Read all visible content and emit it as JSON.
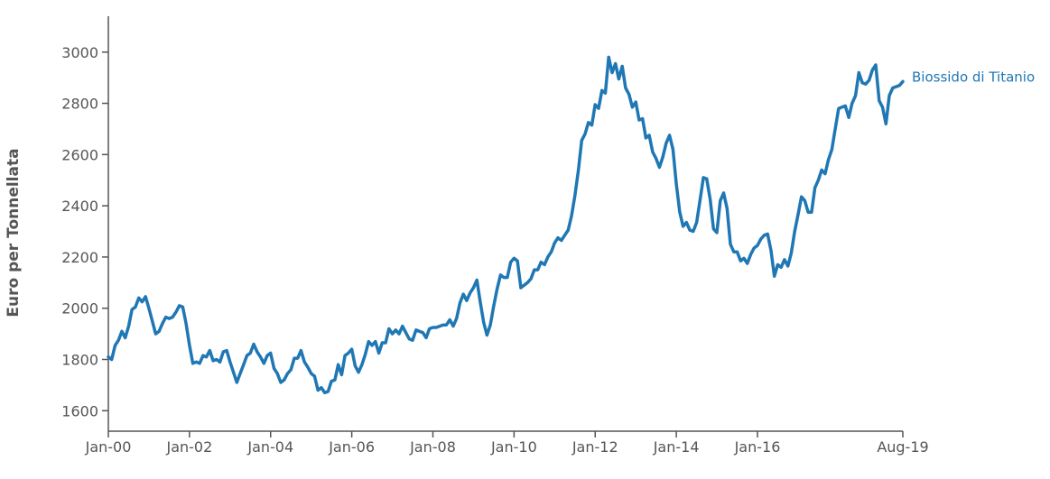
{
  "chart_data": {
    "type": "line",
    "title": "",
    "xlabel": "",
    "ylabel": "Euro per Tonnellata",
    "xlim": [
      "2000-01",
      "2019-08"
    ],
    "ylim": [
      1520,
      3140
    ],
    "yticks": [
      1600,
      1800,
      2000,
      2200,
      2400,
      2600,
      2800,
      3000
    ],
    "xticks": [
      {
        "date": "2000-01",
        "label": "Jan-00"
      },
      {
        "date": "2002-01",
        "label": "Jan-02"
      },
      {
        "date": "2004-01",
        "label": "Jan-04"
      },
      {
        "date": "2006-01",
        "label": "Jan-06"
      },
      {
        "date": "2008-01",
        "label": "Jan-08"
      },
      {
        "date": "2010-01",
        "label": "Jan-10"
      },
      {
        "date": "2012-01",
        "label": "Jan-12"
      },
      {
        "date": "2014-01",
        "label": "Jan-14"
      },
      {
        "date": "2016-01",
        "label": "Jan-16"
      },
      {
        "date": "2019-08",
        "label": "Aug-19"
      }
    ],
    "grid": false,
    "legend": "end-of-line label",
    "series": [
      {
        "name": "Biossido di Titanio",
        "color": "#1f77b4",
        "points": [
          [
            "2000-01",
            1810
          ],
          [
            "2000-02",
            1800
          ],
          [
            "2000-03",
            1855
          ],
          [
            "2000-04",
            1875
          ],
          [
            "2000-05",
            1910
          ],
          [
            "2000-06",
            1885
          ],
          [
            "2000-07",
            1930
          ],
          [
            "2000-08",
            1995
          ],
          [
            "2000-09",
            2005
          ],
          [
            "2000-10",
            2040
          ],
          [
            "2000-11",
            2025
          ],
          [
            "2000-12",
            2045
          ],
          [
            "2001-01",
            2000
          ],
          [
            "2001-02",
            1950
          ],
          [
            "2001-03",
            1900
          ],
          [
            "2001-04",
            1910
          ],
          [
            "2001-05",
            1940
          ],
          [
            "2001-06",
            1965
          ],
          [
            "2001-07",
            1960
          ],
          [
            "2001-08",
            1965
          ],
          [
            "2001-09",
            1985
          ],
          [
            "2001-10",
            2010
          ],
          [
            "2001-11",
            2005
          ],
          [
            "2001-12",
            1940
          ],
          [
            "2002-01",
            1855
          ],
          [
            "2002-02",
            1785
          ],
          [
            "2002-03",
            1790
          ],
          [
            "2002-04",
            1785
          ],
          [
            "2002-05",
            1815
          ],
          [
            "2002-06",
            1810
          ],
          [
            "2002-07",
            1835
          ],
          [
            "2002-08",
            1795
          ],
          [
            "2002-09",
            1800
          ],
          [
            "2002-10",
            1790
          ],
          [
            "2002-11",
            1830
          ],
          [
            "2002-12",
            1835
          ],
          [
            "2003-01",
            1790
          ],
          [
            "2003-02",
            1750
          ],
          [
            "2003-03",
            1710
          ],
          [
            "2003-04",
            1745
          ],
          [
            "2003-05",
            1780
          ],
          [
            "2003-06",
            1815
          ],
          [
            "2003-07",
            1825
          ],
          [
            "2003-08",
            1860
          ],
          [
            "2003-09",
            1830
          ],
          [
            "2003-10",
            1810
          ],
          [
            "2003-11",
            1785
          ],
          [
            "2003-12",
            1815
          ],
          [
            "2004-01",
            1825
          ],
          [
            "2004-02",
            1765
          ],
          [
            "2004-03",
            1745
          ],
          [
            "2004-04",
            1710
          ],
          [
            "2004-05",
            1720
          ],
          [
            "2004-06",
            1745
          ],
          [
            "2004-07",
            1760
          ],
          [
            "2004-08",
            1805
          ],
          [
            "2004-09",
            1805
          ],
          [
            "2004-10",
            1835
          ],
          [
            "2004-11",
            1790
          ],
          [
            "2004-12",
            1770
          ],
          [
            "2005-01",
            1745
          ],
          [
            "2005-02",
            1735
          ],
          [
            "2005-03",
            1680
          ],
          [
            "2005-04",
            1690
          ],
          [
            "2005-05",
            1670
          ],
          [
            "2005-06",
            1675
          ],
          [
            "2005-07",
            1715
          ],
          [
            "2005-08",
            1720
          ],
          [
            "2005-09",
            1780
          ],
          [
            "2005-10",
            1740
          ],
          [
            "2005-11",
            1815
          ],
          [
            "2005-12",
            1825
          ],
          [
            "2006-01",
            1840
          ],
          [
            "2006-02",
            1775
          ],
          [
            "2006-03",
            1750
          ],
          [
            "2006-04",
            1780
          ],
          [
            "2006-05",
            1820
          ],
          [
            "2006-06",
            1870
          ],
          [
            "2006-07",
            1855
          ],
          [
            "2006-08",
            1870
          ],
          [
            "2006-09",
            1825
          ],
          [
            "2006-10",
            1865
          ],
          [
            "2006-11",
            1865
          ],
          [
            "2006-12",
            1920
          ],
          [
            "2007-01",
            1900
          ],
          [
            "2007-02",
            1915
          ],
          [
            "2007-03",
            1900
          ],
          [
            "2007-04",
            1930
          ],
          [
            "2007-05",
            1905
          ],
          [
            "2007-06",
            1880
          ],
          [
            "2007-07",
            1875
          ],
          [
            "2007-08",
            1915
          ],
          [
            "2007-09",
            1910
          ],
          [
            "2007-10",
            1905
          ],
          [
            "2007-11",
            1885
          ],
          [
            "2007-12",
            1920
          ],
          [
            "2008-01",
            1925
          ],
          [
            "2008-02",
            1925
          ],
          [
            "2008-03",
            1930
          ],
          [
            "2008-04",
            1935
          ],
          [
            "2008-05",
            1935
          ],
          [
            "2008-06",
            1955
          ],
          [
            "2008-07",
            1930
          ],
          [
            "2008-08",
            1960
          ],
          [
            "2008-09",
            2020
          ],
          [
            "2008-10",
            2055
          ],
          [
            "2008-11",
            2030
          ],
          [
            "2008-12",
            2060
          ],
          [
            "2009-01",
            2080
          ],
          [
            "2009-02",
            2110
          ],
          [
            "2009-03",
            2025
          ],
          [
            "2009-04",
            1945
          ],
          [
            "2009-05",
            1895
          ],
          [
            "2009-06",
            1935
          ],
          [
            "2009-07",
            2010
          ],
          [
            "2009-08",
            2075
          ],
          [
            "2009-09",
            2130
          ],
          [
            "2009-10",
            2120
          ],
          [
            "2009-11",
            2120
          ],
          [
            "2009-12",
            2180
          ],
          [
            "2010-01",
            2195
          ],
          [
            "2010-02",
            2185
          ],
          [
            "2010-03",
            2080
          ],
          [
            "2010-04",
            2090
          ],
          [
            "2010-05",
            2100
          ],
          [
            "2010-06",
            2115
          ],
          [
            "2010-07",
            2150
          ],
          [
            "2010-08",
            2150
          ],
          [
            "2010-09",
            2180
          ],
          [
            "2010-10",
            2170
          ],
          [
            "2010-11",
            2200
          ],
          [
            "2010-12",
            2220
          ],
          [
            "2011-01",
            2255
          ],
          [
            "2011-02",
            2275
          ],
          [
            "2011-03",
            2265
          ],
          [
            "2011-04",
            2285
          ],
          [
            "2011-05",
            2305
          ],
          [
            "2011-06",
            2360
          ],
          [
            "2011-07",
            2440
          ],
          [
            "2011-08",
            2535
          ],
          [
            "2011-09",
            2655
          ],
          [
            "2011-10",
            2680
          ],
          [
            "2011-11",
            2725
          ],
          [
            "2011-12",
            2715
          ],
          [
            "2012-01",
            2795
          ],
          [
            "2012-02",
            2780
          ],
          [
            "2012-03",
            2850
          ],
          [
            "2012-04",
            2840
          ],
          [
            "2012-05",
            2980
          ],
          [
            "2012-06",
            2920
          ],
          [
            "2012-07",
            2955
          ],
          [
            "2012-08",
            2895
          ],
          [
            "2012-09",
            2945
          ],
          [
            "2012-10",
            2860
          ],
          [
            "2012-11",
            2835
          ],
          [
            "2012-12",
            2785
          ],
          [
            "2013-01",
            2805
          ],
          [
            "2013-02",
            2735
          ],
          [
            "2013-03",
            2740
          ],
          [
            "2013-04",
            2665
          ],
          [
            "2013-05",
            2675
          ],
          [
            "2013-06",
            2610
          ],
          [
            "2013-07",
            2585
          ],
          [
            "2013-08",
            2550
          ],
          [
            "2013-09",
            2590
          ],
          [
            "2013-10",
            2645
          ],
          [
            "2013-11",
            2675
          ],
          [
            "2013-12",
            2620
          ],
          [
            "2014-01",
            2485
          ],
          [
            "2014-02",
            2375
          ],
          [
            "2014-03",
            2320
          ],
          [
            "2014-04",
            2335
          ],
          [
            "2014-05",
            2305
          ],
          [
            "2014-06",
            2300
          ],
          [
            "2014-07",
            2335
          ],
          [
            "2014-08",
            2420
          ],
          [
            "2014-09",
            2510
          ],
          [
            "2014-10",
            2505
          ],
          [
            "2014-11",
            2425
          ],
          [
            "2014-12",
            2310
          ],
          [
            "2015-01",
            2295
          ],
          [
            "2015-02",
            2420
          ],
          [
            "2015-03",
            2450
          ],
          [
            "2015-04",
            2390
          ],
          [
            "2015-05",
            2250
          ],
          [
            "2015-06",
            2220
          ],
          [
            "2015-07",
            2220
          ],
          [
            "2015-08",
            2185
          ],
          [
            "2015-09",
            2195
          ],
          [
            "2015-10",
            2175
          ],
          [
            "2015-11",
            2210
          ],
          [
            "2015-12",
            2235
          ],
          [
            "2016-01",
            2245
          ],
          [
            "2016-02",
            2270
          ],
          [
            "2016-03",
            2285
          ],
          [
            "2016-04",
            2290
          ],
          [
            "2016-05",
            2225
          ],
          [
            "2016-06",
            2125
          ],
          [
            "2016-07",
            2170
          ],
          [
            "2016-08",
            2160
          ],
          [
            "2016-09",
            2190
          ],
          [
            "2016-10",
            2165
          ],
          [
            "2016-11",
            2215
          ],
          [
            "2016-12",
            2300
          ],
          [
            "2017-01",
            2365
          ],
          [
            "2017-02",
            2435
          ],
          [
            "2017-03",
            2420
          ],
          [
            "2017-04",
            2375
          ],
          [
            "2017-05",
            2375
          ],
          [
            "2017-06",
            2470
          ],
          [
            "2017-07",
            2500
          ],
          [
            "2017-08",
            2540
          ],
          [
            "2017-09",
            2525
          ],
          [
            "2017-10",
            2580
          ],
          [
            "2017-11",
            2620
          ],
          [
            "2017-12",
            2700
          ],
          [
            "2018-01",
            2780
          ],
          [
            "2018-02",
            2785
          ],
          [
            "2018-03",
            2790
          ],
          [
            "2018-04",
            2745
          ],
          [
            "2018-05",
            2800
          ],
          [
            "2018-06",
            2830
          ],
          [
            "2018-07",
            2920
          ],
          [
            "2018-08",
            2880
          ],
          [
            "2018-09",
            2875
          ],
          [
            "2018-10",
            2890
          ],
          [
            "2018-11",
            2930
          ],
          [
            "2018-12",
            2950
          ],
          [
            "2019-01",
            2810
          ],
          [
            "2019-02",
            2785
          ],
          [
            "2019-03",
            2720
          ],
          [
            "2019-04",
            2830
          ],
          [
            "2019-05",
            2860
          ],
          [
            "2019-06",
            2865
          ],
          [
            "2019-07",
            2870
          ],
          [
            "2019-08",
            2885
          ]
        ]
      }
    ]
  }
}
